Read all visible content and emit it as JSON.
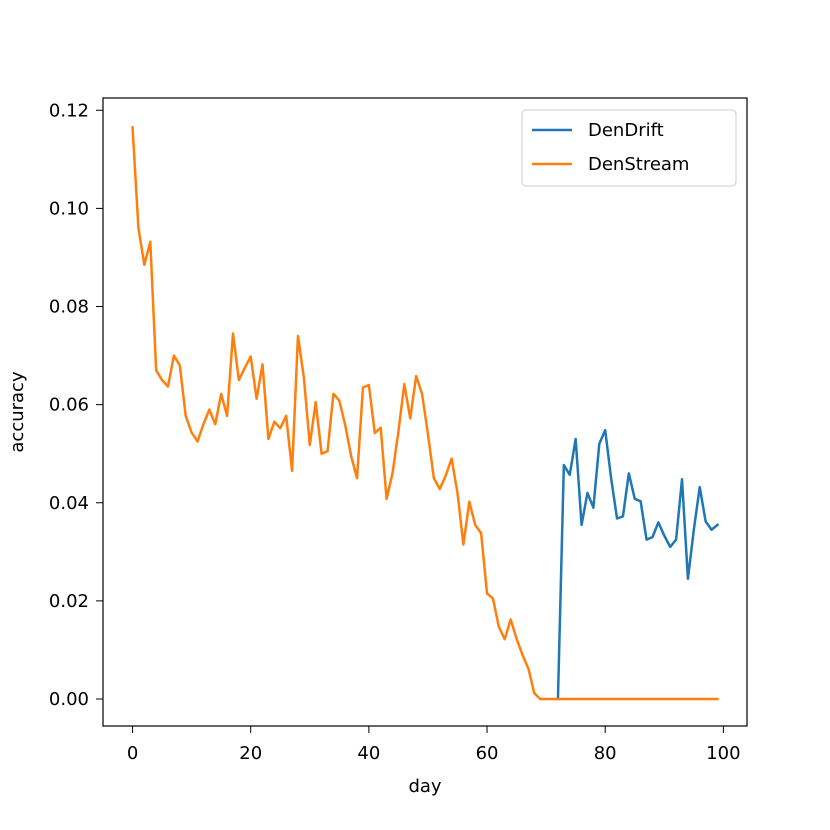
{
  "chart_data": {
    "type": "line",
    "title": "",
    "xlabel": "day",
    "ylabel": "accuracy",
    "xlim": [
      -5,
      104
    ],
    "ylim": [
      -0.0055,
      0.1225
    ],
    "xticks": [
      0,
      20,
      40,
      60,
      80,
      100
    ],
    "xtick_labels": [
      "0",
      "20",
      "40",
      "60",
      "80",
      "100"
    ],
    "yticks": [
      0.0,
      0.02,
      0.04,
      0.06,
      0.08,
      0.1,
      0.12
    ],
    "ytick_labels": [
      "0.00",
      "0.02",
      "0.04",
      "0.06",
      "0.08",
      "0.10",
      "0.12"
    ],
    "grid": false,
    "legend_position": "top-right",
    "series": [
      {
        "name": "DenDrift",
        "color": "#1f77b4",
        "x": [
          72,
          73,
          74,
          75,
          76,
          77,
          78,
          79,
          80,
          81,
          82,
          83,
          84,
          85,
          86,
          87,
          88,
          89,
          90,
          91,
          92,
          93,
          94,
          95,
          96,
          97,
          98,
          99
        ],
        "values": [
          0.0,
          0.0477,
          0.0457,
          0.053,
          0.0355,
          0.042,
          0.039,
          0.052,
          0.0548,
          0.045,
          0.0368,
          0.0372,
          0.046,
          0.0408,
          0.0403,
          0.0325,
          0.033,
          0.036,
          0.0333,
          0.031,
          0.0325,
          0.0448,
          0.0245,
          0.0345,
          0.0432,
          0.0362,
          0.0345,
          0.0355
        ]
      },
      {
        "name": "DenStream",
        "color": "#ff7f0e",
        "x": [
          0,
          1,
          2,
          3,
          4,
          5,
          6,
          7,
          8,
          9,
          10,
          11,
          12,
          13,
          14,
          15,
          16,
          17,
          18,
          19,
          20,
          21,
          22,
          23,
          24,
          25,
          26,
          27,
          28,
          29,
          30,
          31,
          32,
          33,
          34,
          35,
          36,
          37,
          38,
          39,
          40,
          41,
          42,
          43,
          44,
          45,
          46,
          47,
          48,
          49,
          50,
          51,
          52,
          53,
          54,
          55,
          56,
          57,
          58,
          59,
          60,
          61,
          62,
          63,
          64,
          65,
          66,
          67,
          68,
          69,
          70,
          71,
          72,
          73,
          74,
          75,
          76,
          77,
          78,
          79,
          80,
          81,
          82,
          83,
          84,
          85,
          86,
          87,
          88,
          89,
          90,
          91,
          92,
          93,
          94,
          95,
          96,
          97,
          98,
          99
        ],
        "values": [
          0.1165,
          0.096,
          0.0885,
          0.0932,
          0.067,
          0.065,
          0.0637,
          0.07,
          0.068,
          0.0577,
          0.0543,
          0.0525,
          0.056,
          0.059,
          0.056,
          0.0622,
          0.0577,
          0.0745,
          0.065,
          0.0675,
          0.0698,
          0.0612,
          0.0682,
          0.053,
          0.0565,
          0.0552,
          0.0577,
          0.0465,
          0.074,
          0.0655,
          0.0518,
          0.0605,
          0.05,
          0.0505,
          0.0622,
          0.0608,
          0.0558,
          0.0495,
          0.045,
          0.0635,
          0.064,
          0.0542,
          0.0553,
          0.0408,
          0.046,
          0.0545,
          0.0642,
          0.0572,
          0.0658,
          0.0622,
          0.054,
          0.045,
          0.0428,
          0.0455,
          0.049,
          0.042,
          0.0315,
          0.0402,
          0.0355,
          0.0338,
          0.0215,
          0.0205,
          0.0147,
          0.0122,
          0.0162,
          0.0123,
          0.009,
          0.0062,
          0.0012,
          0.0,
          0.0,
          0.0,
          0.0,
          0.0,
          0.0,
          0.0,
          0.0,
          0.0,
          0.0,
          0.0,
          0.0,
          0.0,
          0.0,
          0.0,
          0.0,
          0.0,
          0.0,
          0.0,
          0.0,
          0.0,
          0.0,
          0.0,
          0.0,
          0.0,
          0.0,
          0.0,
          0.0,
          0.0,
          0.0,
          0.0
        ]
      }
    ]
  }
}
